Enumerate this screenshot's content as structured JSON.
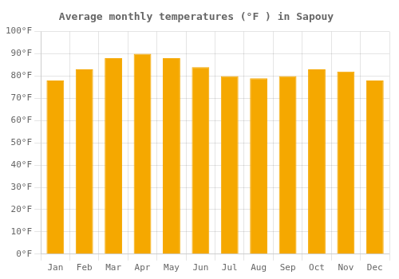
{
  "chart_data": {
    "type": "bar",
    "title": "Average monthly temperatures (°F ) in Sapouy",
    "categories": [
      "Jan",
      "Feb",
      "Mar",
      "Apr",
      "May",
      "Jun",
      "Jul",
      "Aug",
      "Sep",
      "Oct",
      "Nov",
      "Dec"
    ],
    "values": [
      78,
      83,
      88,
      90,
      88,
      84,
      80,
      79,
      80,
      83,
      82,
      78
    ],
    "color": "#F5A800",
    "ylim": [
      0,
      100
    ],
    "yticks": [
      {
        "value": 0,
        "label": "0°F"
      },
      {
        "value": 10,
        "label": "10°F"
      },
      {
        "value": 20,
        "label": "20°F"
      },
      {
        "value": 30,
        "label": "30°F"
      },
      {
        "value": 40,
        "label": "40°F"
      },
      {
        "value": 50,
        "label": "50°F"
      },
      {
        "value": 60,
        "label": "60°F"
      },
      {
        "value": 70,
        "label": "70°F"
      },
      {
        "value": 80,
        "label": "80°F"
      },
      {
        "value": 90,
        "label": "90°F"
      },
      {
        "value": 100,
        "label": "100°F"
      }
    ],
    "grid": true
  }
}
